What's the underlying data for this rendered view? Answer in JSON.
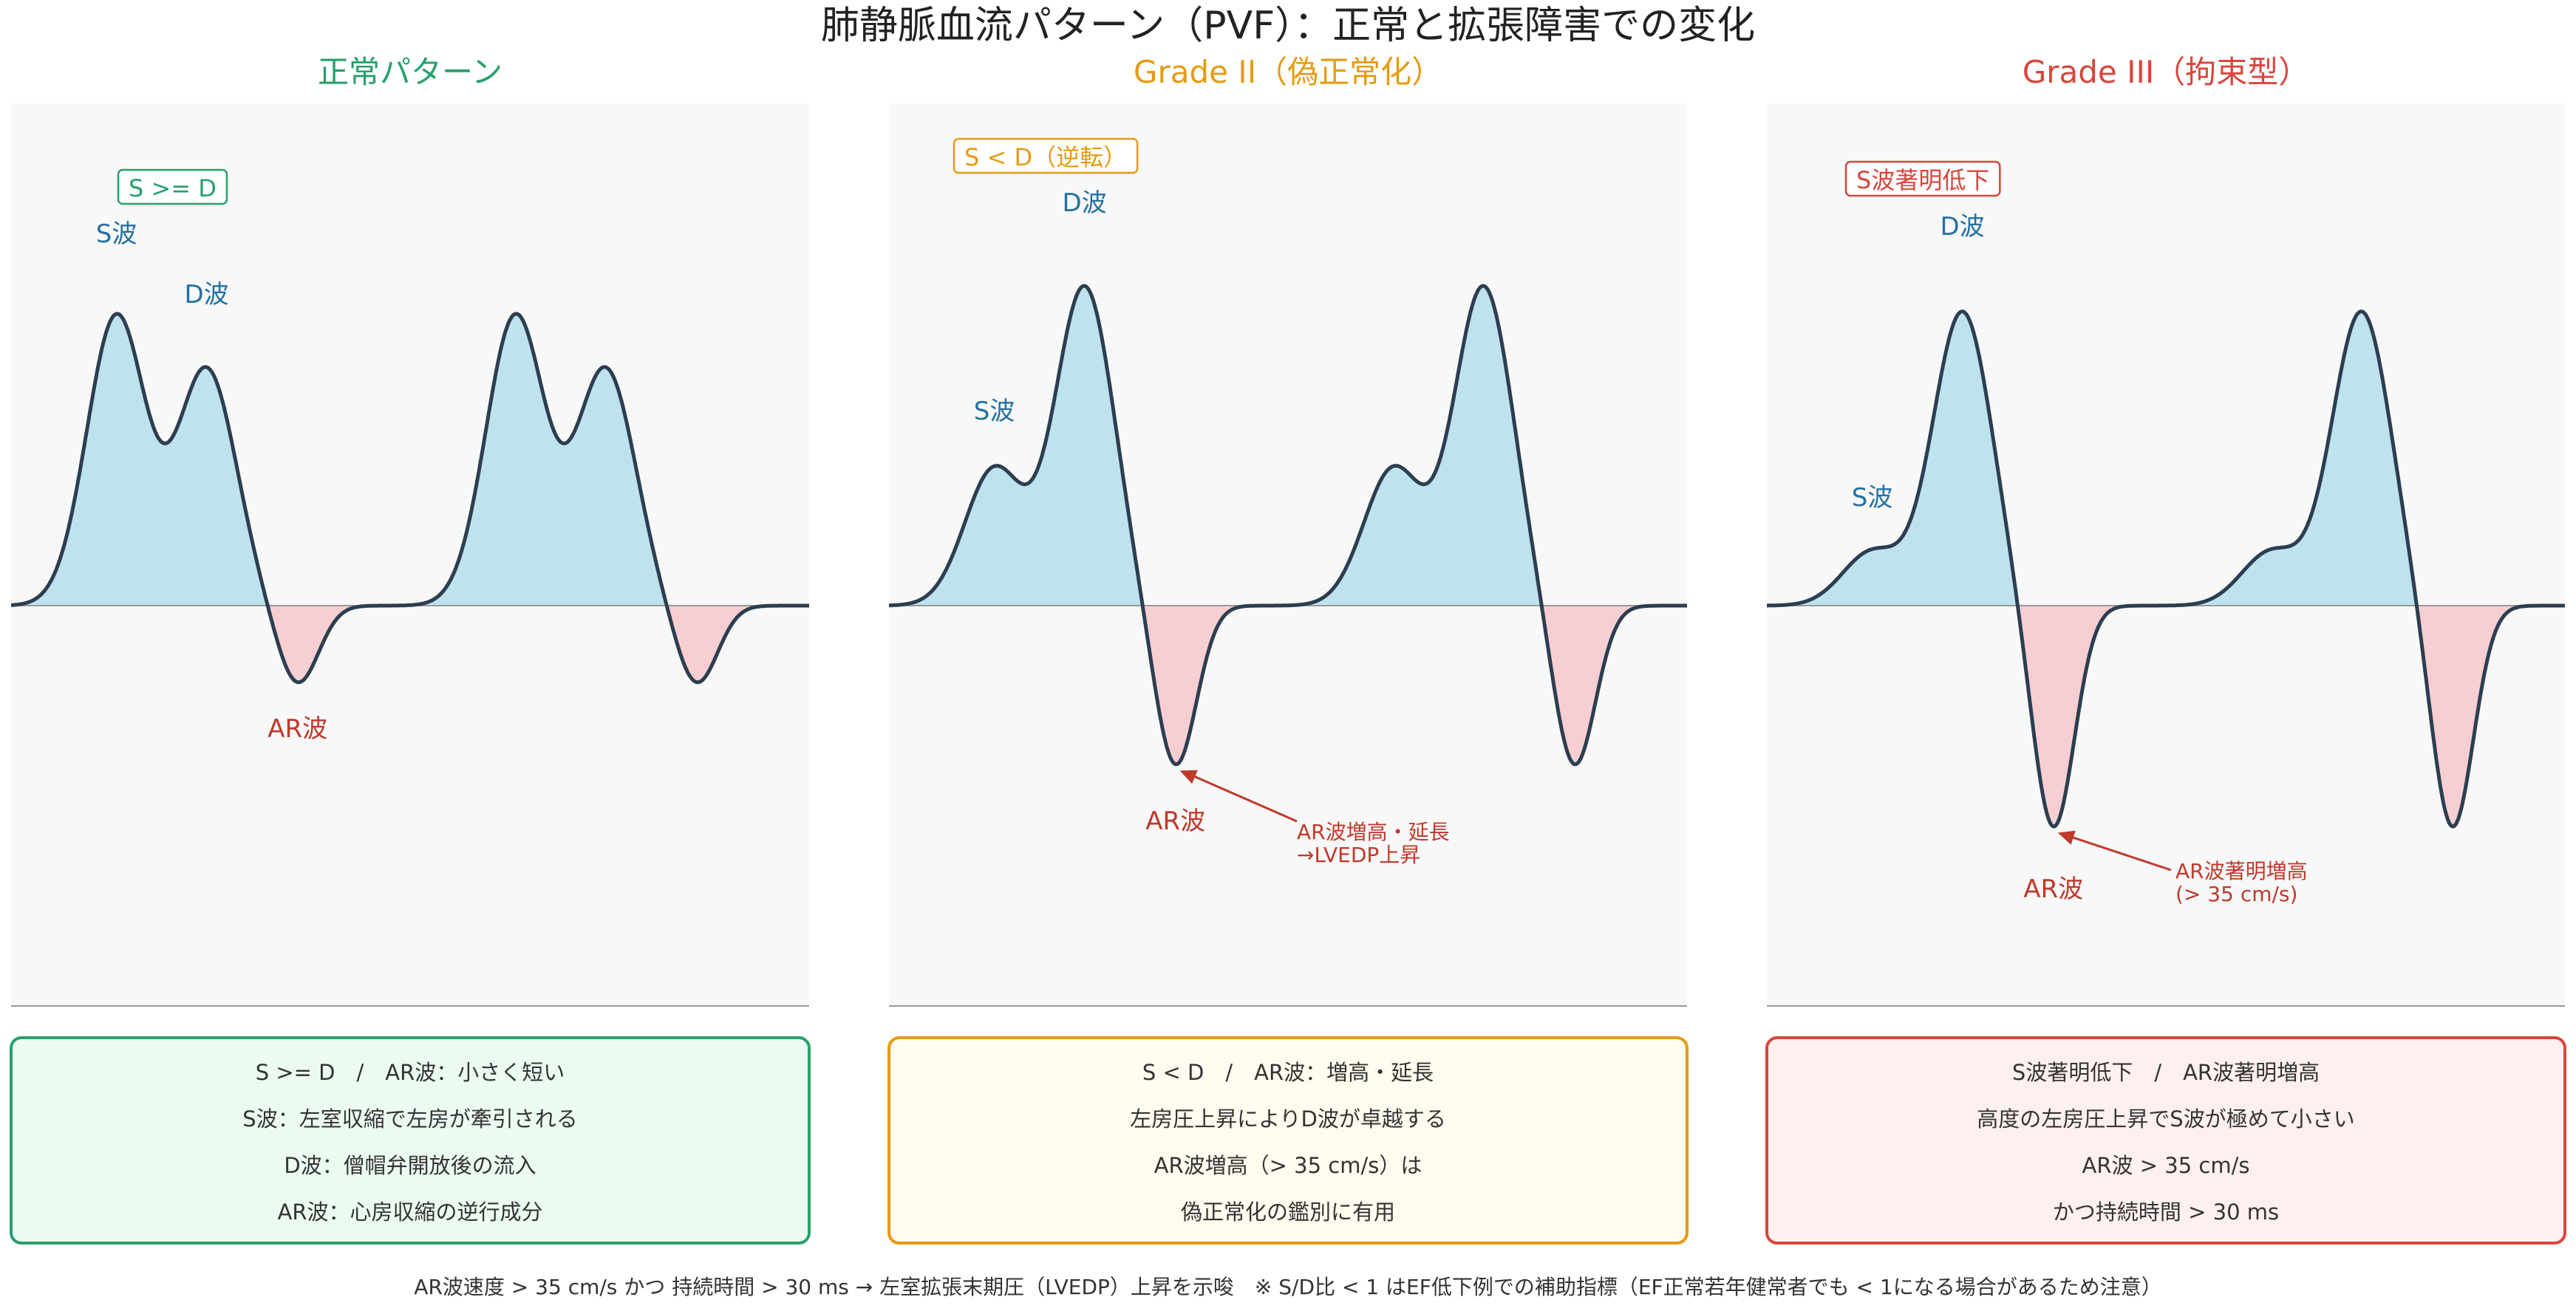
{
  "title": "肺静脈血流パターン（PVF）：正常と拡張障害での変化",
  "colors": {
    "title": "#222222",
    "s_label": "#2471a3",
    "ar_label": "#c0392b",
    "positive_fill": "#bfe2ef",
    "negative_fill": "#f7cfd2",
    "curve": "#2c3e50",
    "panel_bg": "#f8f8f8",
    "baseline": "#999999"
  },
  "panels": [
    {
      "heading": "正常パターン",
      "accent": "#27a06b",
      "box_bg": "#ecfbf2",
      "tag": "S >= D",
      "s_label": "S波",
      "d_label": "D波",
      "ar_label": "AR波",
      "arrow_note": [],
      "box_lines": [
        "S >= D　/　AR波：小さく短い",
        "S波：左室収縮で左房が牽引される",
        "D波：僧帽弁開放後の流入",
        "AR波：心房収縮の逆行成分"
      ],
      "waves": {
        "s": 0.7,
        "d": 0.57,
        "ar": 0.19
      }
    },
    {
      "heading": "Grade II（偽正常化）",
      "accent": "#e59b12",
      "box_bg": "#fffbee",
      "tag": "S < D（逆転）",
      "s_label": "S波",
      "d_label": "D波",
      "ar_label": "AR波",
      "arrow_note": [
        "AR波増高・延長",
        "→LVEDP上昇"
      ],
      "box_lines": [
        "S < D　/　AR波：増高・延長",
        "左房圧上昇によりD波が卓越する",
        "AR波増高（> 35 cm/s）は",
        "偽正常化の鑑別に有用"
      ],
      "waves": {
        "s": 0.33,
        "d": 0.77,
        "ar": 0.39
      }
    },
    {
      "heading": "Grade III（拘束型）",
      "accent": "#d8463c",
      "box_bg": "#fff0f0",
      "tag": "S波著明低下",
      "s_label": "S波",
      "d_label": "D波",
      "ar_label": "AR波",
      "arrow_note": [
        "AR波著明増高",
        "(> 35 cm/s)"
      ],
      "box_lines": [
        "S波著明低下　/　AR波著明増高",
        "高度の左房圧上昇でS波が極めて小さい",
        "AR波 > 35 cm/s",
        "かつ持続時間 > 30 ms"
      ],
      "waves": {
        "s": 0.13,
        "d": 0.71,
        "ar": 0.54
      }
    }
  ],
  "footnote": "AR波速度 > 35 cm/s かつ 持続時間 > 30 ms → 左室拡張末期圧（LVEDP）上昇を示唆　※ S/D比 < 1 はEF低下例での補助指標（EF正常若年健常者でも < 1になる場合があるため注意）"
}
